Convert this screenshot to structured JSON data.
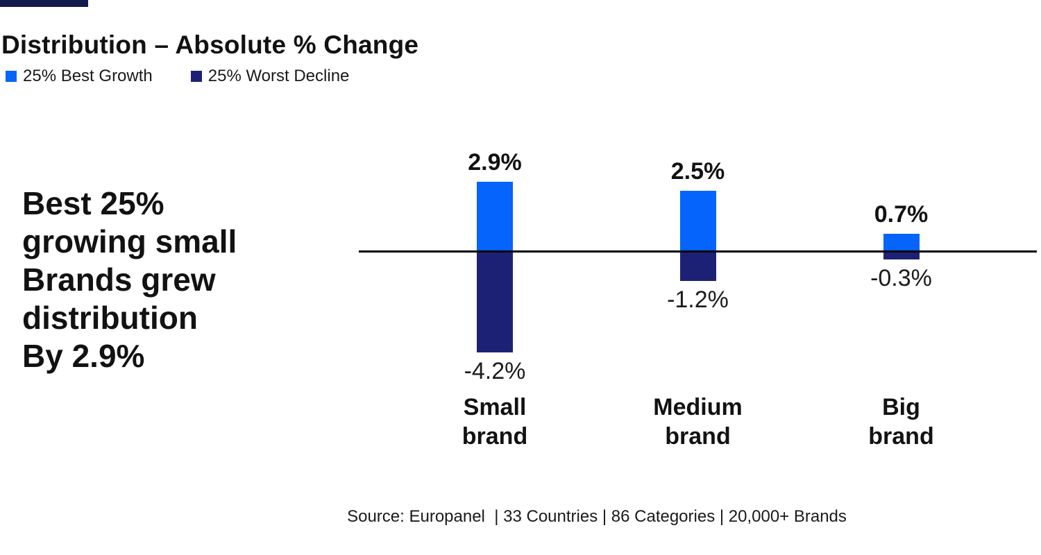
{
  "accent": {
    "color": "#131a4e"
  },
  "header": {
    "title": "Distribution – Absolute % Change"
  },
  "legend": {
    "items": [
      {
        "label": "25% Best Growth",
        "color": "#0564fb"
      },
      {
        "label": "25% Worst Decline",
        "color": "#1d2175"
      }
    ]
  },
  "callout": {
    "text": "Best 25%\ngrowing small\nBrands grew\ndistribution\nBy 2.9%"
  },
  "chart_data": {
    "type": "bar",
    "title": "Distribution – Absolute % Change",
    "categories": [
      "Small brand",
      "Medium brand",
      "Big brand"
    ],
    "series": [
      {
        "name": "25% Best Growth",
        "color": "#0564fb",
        "values": [
          2.9,
          2.5,
          0.7
        ],
        "labels": [
          "2.9%",
          "2.5%",
          "0.7%"
        ]
      },
      {
        "name": "25% Worst Decline",
        "color": "#1d2175",
        "values": [
          -4.2,
          -1.2,
          -0.3
        ],
        "labels": [
          "-4.2%",
          "-1.2%",
          "-0.3%"
        ]
      }
    ],
    "baseline": 0,
    "grid": false,
    "legend_position": "top-left",
    "axis_line_color": "#000000"
  },
  "source": {
    "text": "Source: Europanel  | 33 Countries | 86 Categories | 20,000+ Brands"
  }
}
